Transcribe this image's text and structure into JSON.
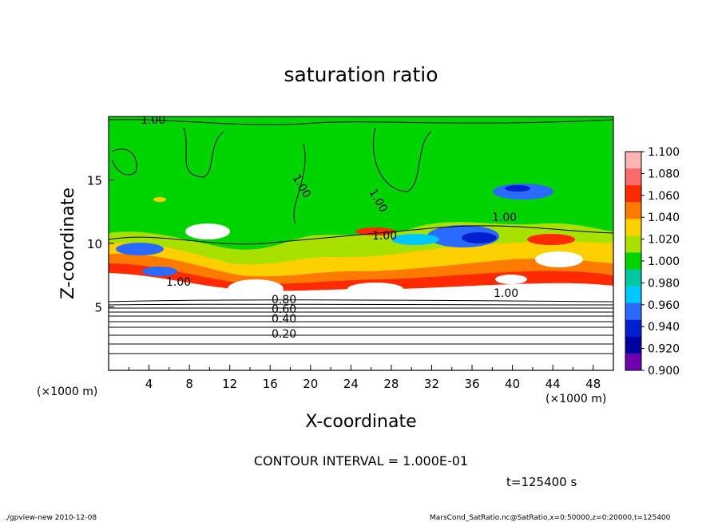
{
  "chart_data": {
    "type": "heatmap",
    "title": "saturation ratio",
    "xlabel": "X-coordinate",
    "ylabel": "Z-coordinate",
    "x_unit": "(×1000 m)",
    "y_unit": "(×1000 m)",
    "xlim": [
      0,
      50
    ],
    "ylim": [
      0,
      20
    ],
    "x_ticks": [
      "4",
      "8",
      "12",
      "16",
      "20",
      "24",
      "28",
      "32",
      "36",
      "40",
      "44",
      "48"
    ],
    "y_ticks": [
      "5",
      "10",
      "15"
    ],
    "colorbar": {
      "labels": [
        "1.100",
        "1.080",
        "1.060",
        "1.040",
        "1.020",
        "1.000",
        "0.980",
        "0.960",
        "0.940",
        "0.920",
        "0.900"
      ],
      "colors": [
        "#ffb4b4",
        "#ff6a6a",
        "#ff2a00",
        "#ff7a00",
        "#ffd000",
        "#a8e000",
        "#00d400",
        "#00c8a0",
        "#00c8ff",
        "#2a6aff",
        "#0020d0",
        "#0000a0",
        "#7000b0"
      ]
    },
    "contour_labels": [
      "1.00",
      "1.00",
      "1.00",
      "1.00",
      "1.00",
      "1.00",
      "1.00",
      "0.80",
      "0.60",
      "0.40",
      "0.20"
    ],
    "contour_interval": "CONTOUR INTERVAL = 1.000E-01",
    "time": "t=125400 s"
  },
  "footer": {
    "left": "./gpview-new  2010-12-08",
    "right": "MarsCond_SatRatio.nc@SatRatio,x=0:50000,z=0:20000,t=125400"
  }
}
